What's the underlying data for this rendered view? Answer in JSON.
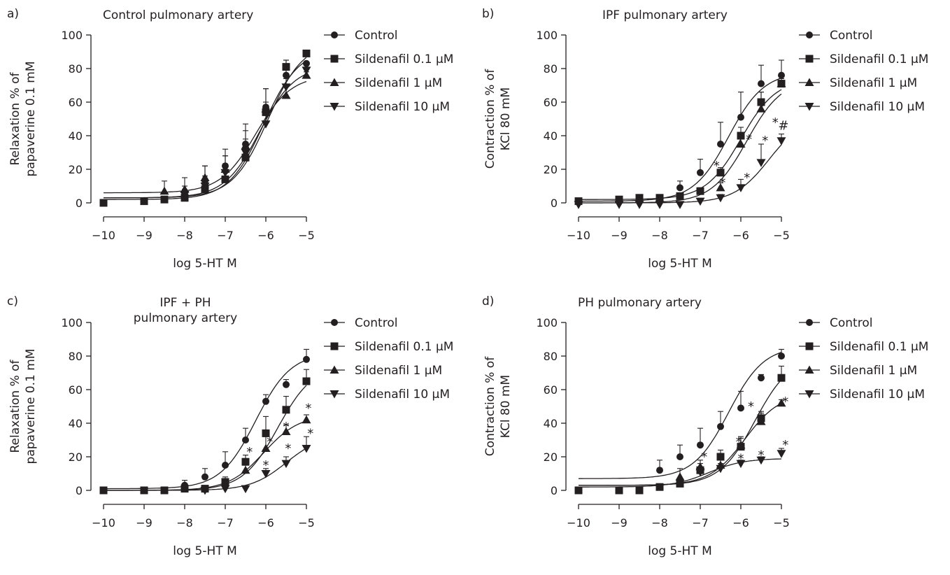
{
  "legend": [
    "Control",
    "Sildenafil 0.1 μM",
    "Sildenafil 1 μM",
    "Sildenafil 10 μM"
  ],
  "markers": [
    "circle",
    "square",
    "triangle-up",
    "triangle-down"
  ],
  "chart_data": [
    {
      "panel": "a)",
      "type": "line",
      "title": [
        "Control pulmonary artery"
      ],
      "xlabel": "log 5-HT M",
      "ylabel": [
        "Relaxation % of",
        "papaverine 0.1 mM"
      ],
      "xlim": [
        -10,
        -5
      ],
      "ylim": [
        0,
        100
      ],
      "xticks": [
        -10,
        -9,
        -8,
        -7,
        -6,
        -5
      ],
      "yticks": [
        0,
        20,
        40,
        60,
        80,
        100
      ],
      "x": [
        -10,
        -9,
        -8.5,
        -8,
        -7.5,
        -7,
        -6.5,
        -6,
        -5.5,
        -5
      ],
      "series": [
        {
          "name": "Control",
          "values": [
            null,
            1,
            2,
            6,
            13,
            22,
            35,
            57,
            76,
            83
          ],
          "err": [
            null,
            0,
            1,
            4,
            9,
            10,
            12,
            11,
            9,
            0
          ]
        },
        {
          "name": "Sildenafil 0.1 μM",
          "values": [
            0,
            1,
            2,
            3,
            8,
            14,
            27,
            54,
            81,
            89
          ],
          "err": [
            0,
            0,
            0,
            2,
            3,
            4,
            4,
            6,
            4,
            0
          ]
        },
        {
          "name": "Sildenafil 1 μM",
          "values": [
            null,
            null,
            7,
            8,
            15,
            20,
            34,
            56,
            64,
            76
          ],
          "err": [
            null,
            null,
            6,
            7,
            7,
            8,
            9,
            12,
            10,
            2
          ]
        },
        {
          "name": "Sildenafil 10 μM",
          "values": [
            null,
            null,
            null,
            5,
            10,
            18,
            30,
            47,
            69,
            79
          ],
          "err": [
            null,
            null,
            null,
            3,
            6,
            10,
            8,
            9,
            8,
            3
          ]
        }
      ],
      "fits": [
        {
          "bottom": 2,
          "top": 92,
          "logec50": -6.05,
          "hill": 1.0
        },
        {
          "bottom": 3,
          "top": 96,
          "logec50": -5.95,
          "hill": 1.0
        },
        {
          "bottom": 6,
          "top": 76,
          "logec50": -6.25,
          "hill": 1.0
        },
        {
          "bottom": 3,
          "top": 82,
          "logec50": -6.15,
          "hill": 1.0
        }
      ],
      "annotations": []
    },
    {
      "panel": "b)",
      "type": "line",
      "title": [
        "IPF pulmonary artery"
      ],
      "xlabel": "log 5-HT M",
      "ylabel": [
        "Contraction % of",
        "KCl 80 mM"
      ],
      "xlim": [
        -10,
        -5
      ],
      "ylim": [
        0,
        100
      ],
      "xticks": [
        -10,
        -9,
        -8,
        -7,
        -6,
        -5
      ],
      "yticks": [
        0,
        20,
        40,
        60,
        80,
        100
      ],
      "x": [
        -10,
        -9,
        -8.5,
        -8,
        -7.5,
        -7,
        -6.5,
        -6,
        -5.5,
        -5
      ],
      "series": [
        {
          "name": "Control",
          "values": [
            null,
            null,
            null,
            null,
            9,
            18,
            35,
            51,
            71,
            76
          ],
          "err": [
            null,
            null,
            null,
            null,
            4,
            8,
            13,
            15,
            11,
            9
          ]
        },
        {
          "name": "Sildenafil 0.1 μM",
          "values": [
            1,
            2,
            3,
            3,
            4,
            7,
            18,
            40,
            60,
            71
          ],
          "err": [
            0,
            0,
            0,
            0,
            1,
            2,
            3,
            5,
            6,
            2
          ]
        },
        {
          "name": "Sildenafil 1 μM",
          "values": [
            null,
            null,
            null,
            null,
            null,
            null,
            9,
            35,
            56,
            71
          ],
          "err": [
            null,
            null,
            null,
            null,
            null,
            null,
            3,
            7,
            10,
            3
          ]
        },
        {
          "name": "Sildenafil 10 μM",
          "values": [
            -1,
            -1,
            -1,
            -1,
            -1,
            1,
            3,
            9,
            24,
            37
          ],
          "err": [
            0,
            0,
            0,
            0,
            0,
            1,
            2,
            5,
            11,
            4
          ]
        }
      ],
      "fits": [
        {
          "bottom": 1,
          "top": 78,
          "logec50": -6.3,
          "hill": 1.0
        },
        {
          "bottom": 2,
          "top": 74,
          "logec50": -6.0,
          "hill": 1.0
        },
        {
          "bottom": 0,
          "top": 74,
          "logec50": -5.85,
          "hill": 1.0
        },
        {
          "bottom": 0,
          "top": 52,
          "logec50": -5.3,
          "hill": 1.0
        }
      ],
      "annotations": [
        {
          "text": "*",
          "x": -6.6,
          "y": 22
        },
        {
          "text": "*",
          "x": -6.45,
          "y": 12
        },
        {
          "text": "*",
          "x": -5.85,
          "y": 15
        },
        {
          "text": "*",
          "x": -5.8,
          "y": 38
        },
        {
          "text": "*",
          "x": -5.4,
          "y": 37
        },
        {
          "text": "*",
          "x": -5.15,
          "y": 48
        },
        {
          "text": "#",
          "x": -4.95,
          "y": 46
        }
      ]
    },
    {
      "panel": "c)",
      "type": "line",
      "title": [
        "IPF + PH",
        "pulmonary artery"
      ],
      "xlabel": "log 5-HT M",
      "ylabel": [
        "Relaxation % of",
        "papaverine 0.1 mM"
      ],
      "xlim": [
        -10,
        -5
      ],
      "ylim": [
        0,
        100
      ],
      "xticks": [
        -10,
        -9,
        -8,
        -7,
        -6,
        -5
      ],
      "yticks": [
        0,
        20,
        40,
        60,
        80,
        100
      ],
      "x": [
        -10,
        -9,
        -8.5,
        -8,
        -7.5,
        -7,
        -6.5,
        -6,
        -5.5,
        -5
      ],
      "series": [
        {
          "name": "Control",
          "values": [
            null,
            null,
            null,
            3,
            8,
            15,
            30,
            53,
            63,
            78
          ],
          "err": [
            null,
            null,
            null,
            3,
            5,
            8,
            7,
            4,
            3,
            6
          ]
        },
        {
          "name": "Sildenafil 0.1 μM",
          "values": [
            0,
            0,
            0,
            1,
            1,
            5,
            17,
            34,
            48,
            65
          ],
          "err": [
            0,
            0,
            0,
            0,
            0,
            3,
            4,
            10,
            8,
            7
          ]
        },
        {
          "name": "Sildenafil 1 μM",
          "values": [
            null,
            null,
            null,
            null,
            null,
            null,
            12,
            25,
            35,
            42
          ],
          "err": [
            null,
            null,
            null,
            null,
            null,
            null,
            3,
            7,
            4,
            3
          ]
        },
        {
          "name": "Sildenafil 10 μM",
          "values": [
            null,
            null,
            null,
            null,
            0,
            1,
            1,
            10,
            16,
            25
          ],
          "err": [
            null,
            null,
            null,
            null,
            0,
            0,
            0,
            3,
            4,
            7
          ]
        }
      ],
      "fits": [
        {
          "bottom": 1,
          "top": 82,
          "logec50": -6.25,
          "hill": 1.0
        },
        {
          "bottom": 0,
          "top": 75,
          "logec50": -5.7,
          "hill": 1.0
        },
        {
          "bottom": 0,
          "top": 45,
          "logec50": -6.05,
          "hill": 1.0
        },
        {
          "bottom": 0,
          "top": 33,
          "logec50": -5.5,
          "hill": 1.0
        }
      ],
      "annotations": [
        {
          "text": "*",
          "x": -6.4,
          "y": 23
        },
        {
          "text": "*",
          "x": -5.9,
          "y": 29
        },
        {
          "text": "*",
          "x": -6.0,
          "y": 15
        },
        {
          "text": "*",
          "x": -5.5,
          "y": 38
        },
        {
          "text": "*",
          "x": -5.45,
          "y": 25
        },
        {
          "text": "*",
          "x": -4.95,
          "y": 49
        },
        {
          "text": "*",
          "x": -4.9,
          "y": 34
        }
      ]
    },
    {
      "panel": "d)",
      "type": "line",
      "title": [
        "PH pulmonary artery"
      ],
      "xlabel": "log 5-HT M",
      "ylabel": [
        "Contraction % of",
        "KCl 80 mM"
      ],
      "xlim": [
        -10,
        -5
      ],
      "ylim": [
        0,
        100
      ],
      "xticks": [
        -10,
        -9,
        -8,
        -7,
        -6,
        -5
      ],
      "yticks": [
        0,
        20,
        40,
        60,
        80,
        100
      ],
      "x": [
        -10,
        -9,
        -8.5,
        -8,
        -7.5,
        -7,
        -6.5,
        -6,
        -5.5,
        -5
      ],
      "series": [
        {
          "name": "Control",
          "values": [
            null,
            null,
            null,
            12,
            20,
            27,
            38,
            49,
            67,
            80
          ],
          "err": [
            null,
            null,
            null,
            6,
            7,
            10,
            9,
            10,
            2,
            4
          ]
        },
        {
          "name": "Sildenafil 0.1 μM",
          "values": [
            0,
            0,
            0,
            2,
            4,
            12,
            20,
            26,
            43,
            67
          ],
          "err": [
            0,
            0,
            0,
            0,
            1,
            4,
            4,
            6,
            4,
            7
          ]
        },
        {
          "name": "Sildenafil 1 μM",
          "values": [
            null,
            null,
            null,
            null,
            8,
            14,
            15,
            27,
            41,
            52
          ],
          "err": [
            null,
            null,
            null,
            null,
            5,
            4,
            3,
            4,
            5,
            2
          ]
        },
        {
          "name": "Sildenafil 10 μM",
          "values": [
            null,
            null,
            null,
            null,
            null,
            11,
            13,
            16,
            18,
            22
          ],
          "err": [
            null,
            null,
            null,
            null,
            null,
            3,
            3,
            2,
            2,
            3
          ]
        }
      ],
      "fits": [
        {
          "bottom": 7,
          "top": 86,
          "logec50": -6.3,
          "hill": 1.0
        },
        {
          "bottom": 3,
          "top": 80,
          "logec50": -5.65,
          "hill": 1.0
        },
        {
          "bottom": 3,
          "top": 58,
          "logec50": -5.9,
          "hill": 1.0
        },
        {
          "bottom": 2,
          "top": 19,
          "logec50": -6.8,
          "hill": 1.0
        }
      ],
      "annotations": [
        {
          "text": "*",
          "x": -5.75,
          "y": 50
        },
        {
          "text": "*",
          "x": -6.9,
          "y": 20
        },
        {
          "text": "*",
          "x": -6.05,
          "y": 29
        },
        {
          "text": "*",
          "x": -6.0,
          "y": 19
        },
        {
          "text": "*",
          "x": -5.5,
          "y": 21
        },
        {
          "text": "*",
          "x": -4.9,
          "y": 53
        },
        {
          "text": "*",
          "x": -4.9,
          "y": 27
        }
      ]
    }
  ]
}
